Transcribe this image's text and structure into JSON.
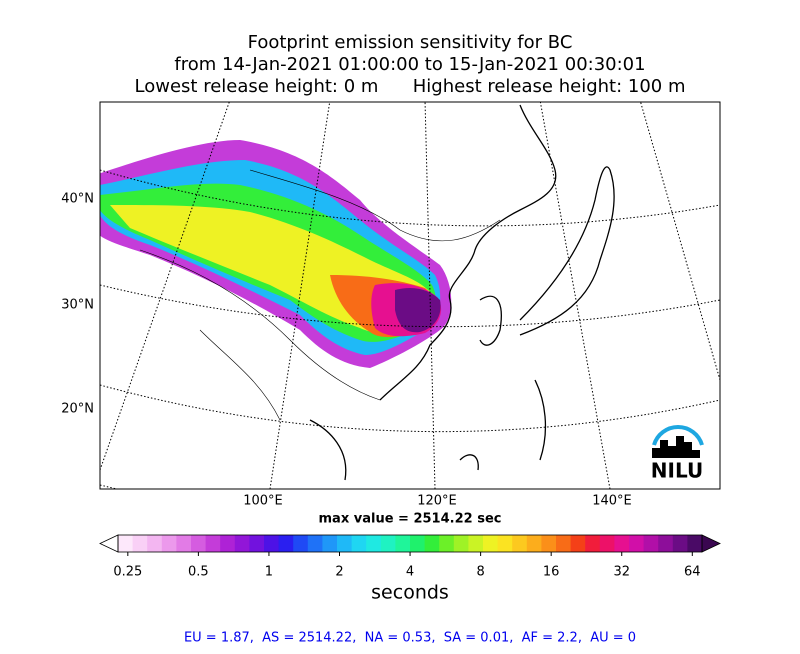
{
  "title": [
    "Footprint emission sensitivity for BC",
    "from 14-Jan-2021 01:00:00 to 15-Jan-2021 00:30:01",
    "Lowest release height: 0 m      Highest release height: 100 m"
  ],
  "map": {
    "lat_labels": [
      "40°N",
      "30°N",
      "20°N"
    ],
    "lon_labels": [
      "100°E",
      "120°E",
      "140°E"
    ],
    "logo": "NILU",
    "max_value_text": "max value = 2514.22 sec"
  },
  "colorbar": {
    "scale": "log",
    "lim": [
      0.227,
      70.4
    ],
    "ticks": [
      0.25,
      0.5,
      1,
      2,
      4,
      8,
      16,
      32,
      64
    ],
    "label": "seconds",
    "colors": [
      "#fde8fb",
      "#f9d0f6",
      "#f3b6f1",
      "#ec99ec",
      "#e27be6",
      "#d55ce0",
      "#c43cd9",
      "#ae22d6",
      "#9216d8",
      "#7212de",
      "#4d12e6",
      "#2a1ff0",
      "#1f4af5",
      "#1f72f7",
      "#1f97f8",
      "#1fb9f7",
      "#1fd6f2",
      "#1fe9e2",
      "#1ff2c2",
      "#1ff59a",
      "#1ff16c",
      "#33ee3a",
      "#6cf028",
      "#9ff226",
      "#caf325",
      "#eef224",
      "#fbe322",
      "#fcc91f",
      "#fcad1c",
      "#fb8f19",
      "#f86c17",
      "#f44018",
      "#f11d3b",
      "#ed1168",
      "#e61090",
      "#d10fa8",
      "#b10fa8",
      "#8d0e9a",
      "#6b0c85",
      "#4a0a66"
    ],
    "under_color": "#ffffff",
    "over_color": "#3a0750"
  },
  "footer": "EU = 1.87,  AS = 2514.22,  NA = 0.53,  SA = 0.01,  AF = 2.2,  AU = 0"
}
